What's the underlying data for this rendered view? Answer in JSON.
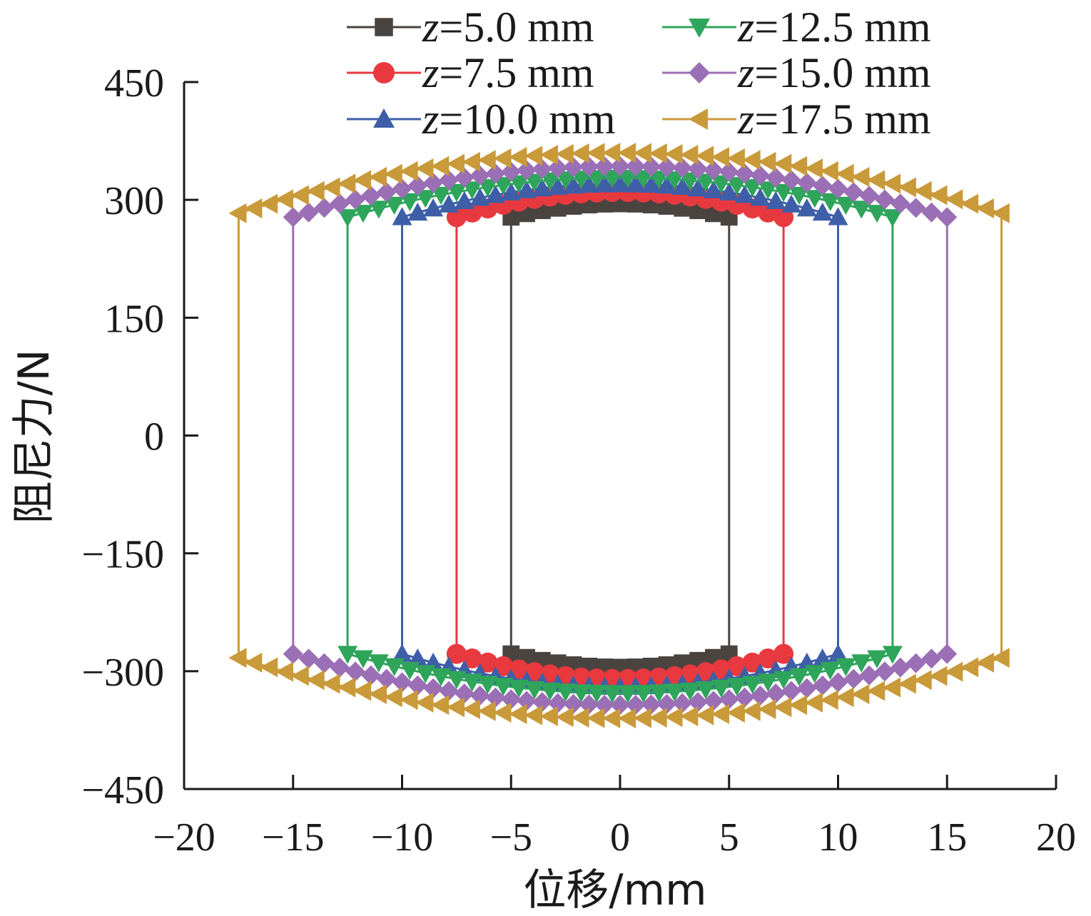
{
  "chart_data": {
    "type": "line",
    "title": "",
    "xlabel": "位移/mm",
    "ylabel": "阻尼力/N",
    "xlim": [
      -20,
      20
    ],
    "ylim": [
      -450,
      450
    ],
    "x_ticks": [
      -20,
      -15,
      -10,
      -5,
      0,
      5,
      10,
      15,
      20
    ],
    "y_ticks": [
      -450,
      -300,
      -150,
      0,
      150,
      300,
      450
    ],
    "x_tick_labels": [
      "−20",
      "−15",
      "−10",
      "−5",
      "0",
      "5",
      "10",
      "15",
      "20"
    ],
    "y_tick_labels": [
      "−450",
      "−300",
      "−150",
      "0",
      "150",
      "300",
      "450"
    ],
    "grid": false,
    "legend_position": "top, two columns",
    "series": [
      {
        "name": "z=5.0 mm",
        "legend_var": "z",
        "legend_rest": "=5.0 mm",
        "color": "#4a4440",
        "marker": "square",
        "amplitude": 5.0,
        "force_edge": 278,
        "force_peak": 295
      },
      {
        "name": "z=7.5 mm",
        "legend_var": "z",
        "legend_rest": "=7.5 mm",
        "color": "#e8393f",
        "marker": "circle",
        "amplitude": 7.5,
        "force_edge": 278,
        "force_peak": 310
      },
      {
        "name": "z=10.0 mm",
        "legend_var": "z",
        "legend_rest": "=10.0 mm",
        "color": "#3e5fa8",
        "marker": "triangle-up",
        "amplitude": 10.0,
        "force_edge": 278,
        "force_peak": 320
      },
      {
        "name": "z=12.5 mm",
        "legend_var": "z",
        "legend_rest": "=12.5 mm",
        "color": "#2ea55a",
        "marker": "triangle-down",
        "amplitude": 12.5,
        "force_edge": 278,
        "force_peak": 328
      },
      {
        "name": "z=15.0 mm",
        "legend_var": "z",
        "legend_rest": "=15.0 mm",
        "color": "#9b6fb5",
        "marker": "diamond",
        "amplitude": 15.0,
        "force_edge": 278,
        "force_peak": 343
      },
      {
        "name": "z=17.5 mm",
        "legend_var": "z",
        "legend_rest": "=17.5 mm",
        "color": "#c99a3a",
        "marker": "triangle-left",
        "amplitude": 17.5,
        "force_edge": 283,
        "force_peak": 360
      }
    ]
  }
}
